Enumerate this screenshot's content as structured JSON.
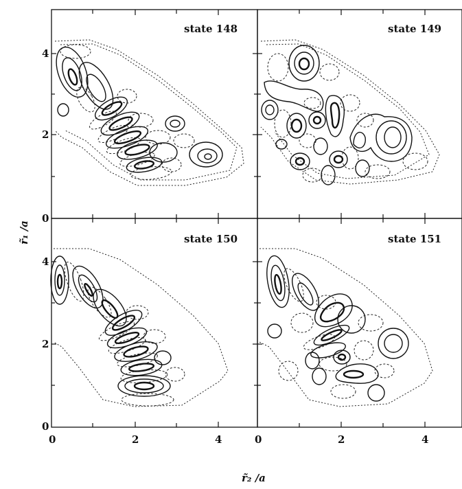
{
  "figure": {
    "panels": [
      {
        "id": "p148",
        "label": "state 148"
      },
      {
        "id": "p149",
        "label": "state 149"
      },
      {
        "id": "p150",
        "label": "state 150"
      },
      {
        "id": "p151",
        "label": "state 151"
      }
    ],
    "xlabel": "r̃₂ /a",
    "ylabel": "r̃₁ /a",
    "x_ticks_left": [
      "0",
      "2",
      "4"
    ],
    "x_ticks_right": [
      "0",
      "2",
      "4"
    ],
    "y_ticks_top": [
      "0",
      "2",
      "4"
    ],
    "y_ticks_bottom": [
      "0",
      "2",
      "4"
    ]
  },
  "chart_data": {
    "type": "contour",
    "xlabel": "r̃₂ /a",
    "ylabel": "r̃₁ /a",
    "xlim": [
      0,
      4.8
    ],
    "ylim": [
      0,
      4.8
    ],
    "contour_styles": [
      "solid (positive)",
      "dashed (negative)"
    ],
    "panels": [
      "state 148",
      "state 149",
      "state 150",
      "state 151"
    ]
  }
}
